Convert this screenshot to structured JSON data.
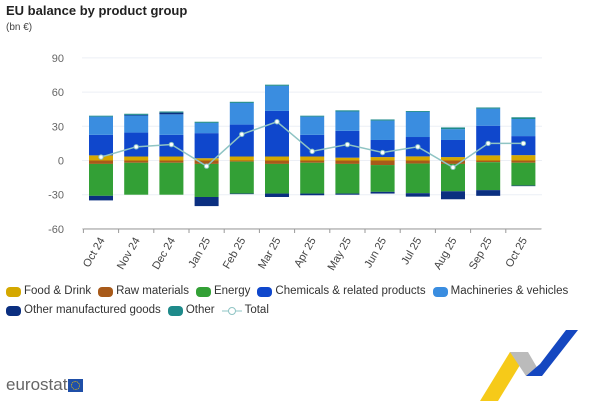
{
  "chart_data": {
    "type": "bar",
    "stacked": true,
    "title": "EU balance by product group",
    "ylabel": "(bn €)",
    "xlabel": "",
    "ylim": [
      -60,
      90
    ],
    "yticks": [
      90,
      60,
      30,
      0,
      -30,
      -60
    ],
    "grid": true,
    "legend_position": "bottom",
    "categories": [
      "Oct 24",
      "Nov 24",
      "Dec 24",
      "Jan 25",
      "Feb 25",
      "Mar 25",
      "Apr 25",
      "May 25",
      "Jun 25",
      "Jul 25",
      "Aug 25",
      "Sep 25",
      "Oct 25"
    ],
    "series": [
      {
        "name": "Food & Drink",
        "color": "#d4a800",
        "values": [
          4.5,
          3.5,
          3.5,
          2,
          3.5,
          3.5,
          3.5,
          2.5,
          3,
          3.6,
          3,
          4.5,
          4.7
        ]
      },
      {
        "name": "Raw materials",
        "color": "#a85a1a",
        "values": [
          -3,
          -2,
          -2,
          -3,
          -1,
          -3,
          -2,
          -3,
          -4,
          -2.7,
          -3,
          -1.5,
          -2
        ]
      },
      {
        "name": "Energy",
        "color": "#33a036",
        "values": [
          -28,
          -28,
          -28,
          -29,
          -28,
          -26,
          -27,
          -26,
          -23.5,
          -26,
          -24,
          -24.5,
          -20
        ]
      },
      {
        "name": "Chemicals  & related products",
        "color": "#0f47cc",
        "values": [
          18,
          21,
          19,
          22,
          28,
          40,
          19,
          23.5,
          15,
          17,
          15,
          26,
          16.7
        ]
      },
      {
        "name": "Machineries & vehicles",
        "color": "#3a8de0",
        "values": [
          16,
          15,
          18,
          9,
          19,
          22,
          16,
          17,
          17,
          22,
          9.5,
          15,
          15
        ]
      },
      {
        "name": "Other manufactured goods",
        "color": "#0b2f80",
        "values": [
          -4,
          0.5,
          1.5,
          -8,
          -0.5,
          -3,
          -1.5,
          -1,
          -1.5,
          -3,
          -7,
          -5,
          -0.5
        ]
      },
      {
        "name": "Other",
        "color": "#1e8a8a",
        "values": [
          0.8,
          1,
          1,
          1,
          1,
          1,
          0.8,
          1,
          1,
          0.8,
          1.5,
          1,
          1.5
        ]
      }
    ],
    "line": {
      "name": "Total",
      "color": "#8fc4c4",
      "values": [
        3,
        12,
        14,
        -5,
        23,
        34,
        8,
        14,
        7,
        12,
        -6,
        15,
        15
      ]
    }
  },
  "branding": {
    "logo_text": "eurostat"
  }
}
